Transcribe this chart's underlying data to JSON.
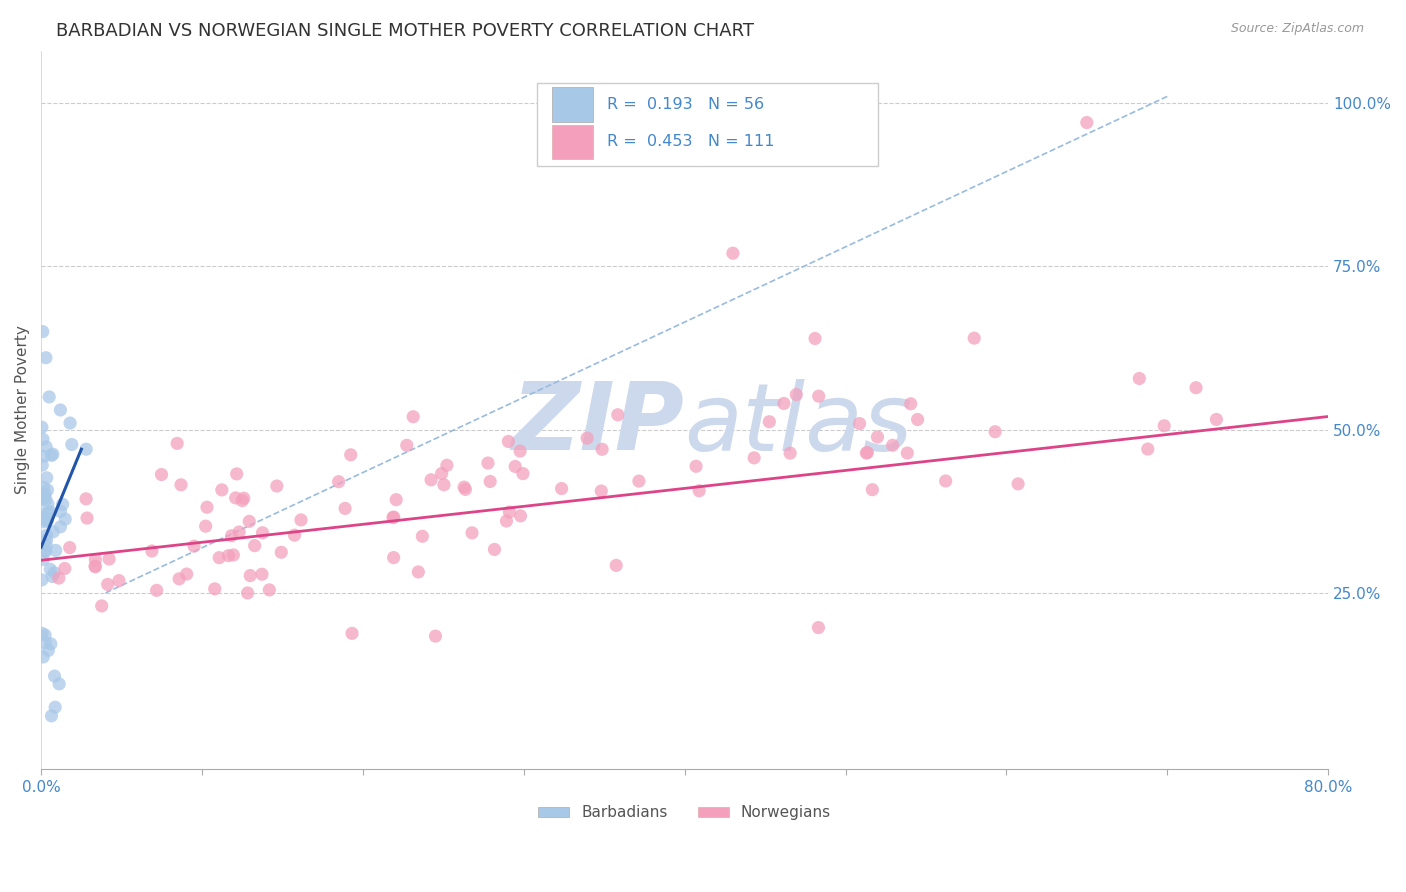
{
  "title": "BARBADIAN VS NORWEGIAN SINGLE MOTHER POVERTY CORRELATION CHART",
  "source": "Source: ZipAtlas.com",
  "ylabel": "Single Mother Poverty",
  "barbadian_R": "0.193",
  "barbadian_N": "56",
  "norwegian_R": "0.453",
  "norwegian_N": "111",
  "barbadian_color": "#a8c8e8",
  "norwegian_color": "#f4a0bc",
  "barbadian_line_color": "#2255aa",
  "norwegian_line_color": "#dd4488",
  "dashed_line_color": "#99bbdd",
  "watermark_text": "ZIPAtlas",
  "watermark_color": "#ccd8ec",
  "title_fontsize": 13,
  "axis_label_fontsize": 11,
  "tick_fontsize": 11,
  "tick_color": "#4488cc",
  "background_color": "#ffffff",
  "grid_color": "#cccccc",
  "xlim": [
    0.0,
    0.8
  ],
  "ylim": [
    -0.02,
    1.08
  ],
  "ytick_positions": [
    0.25,
    0.5,
    0.75,
    1.0
  ],
  "ytick_labels": [
    "25.0%",
    "50.0%",
    "75.0%",
    "100.0%"
  ]
}
